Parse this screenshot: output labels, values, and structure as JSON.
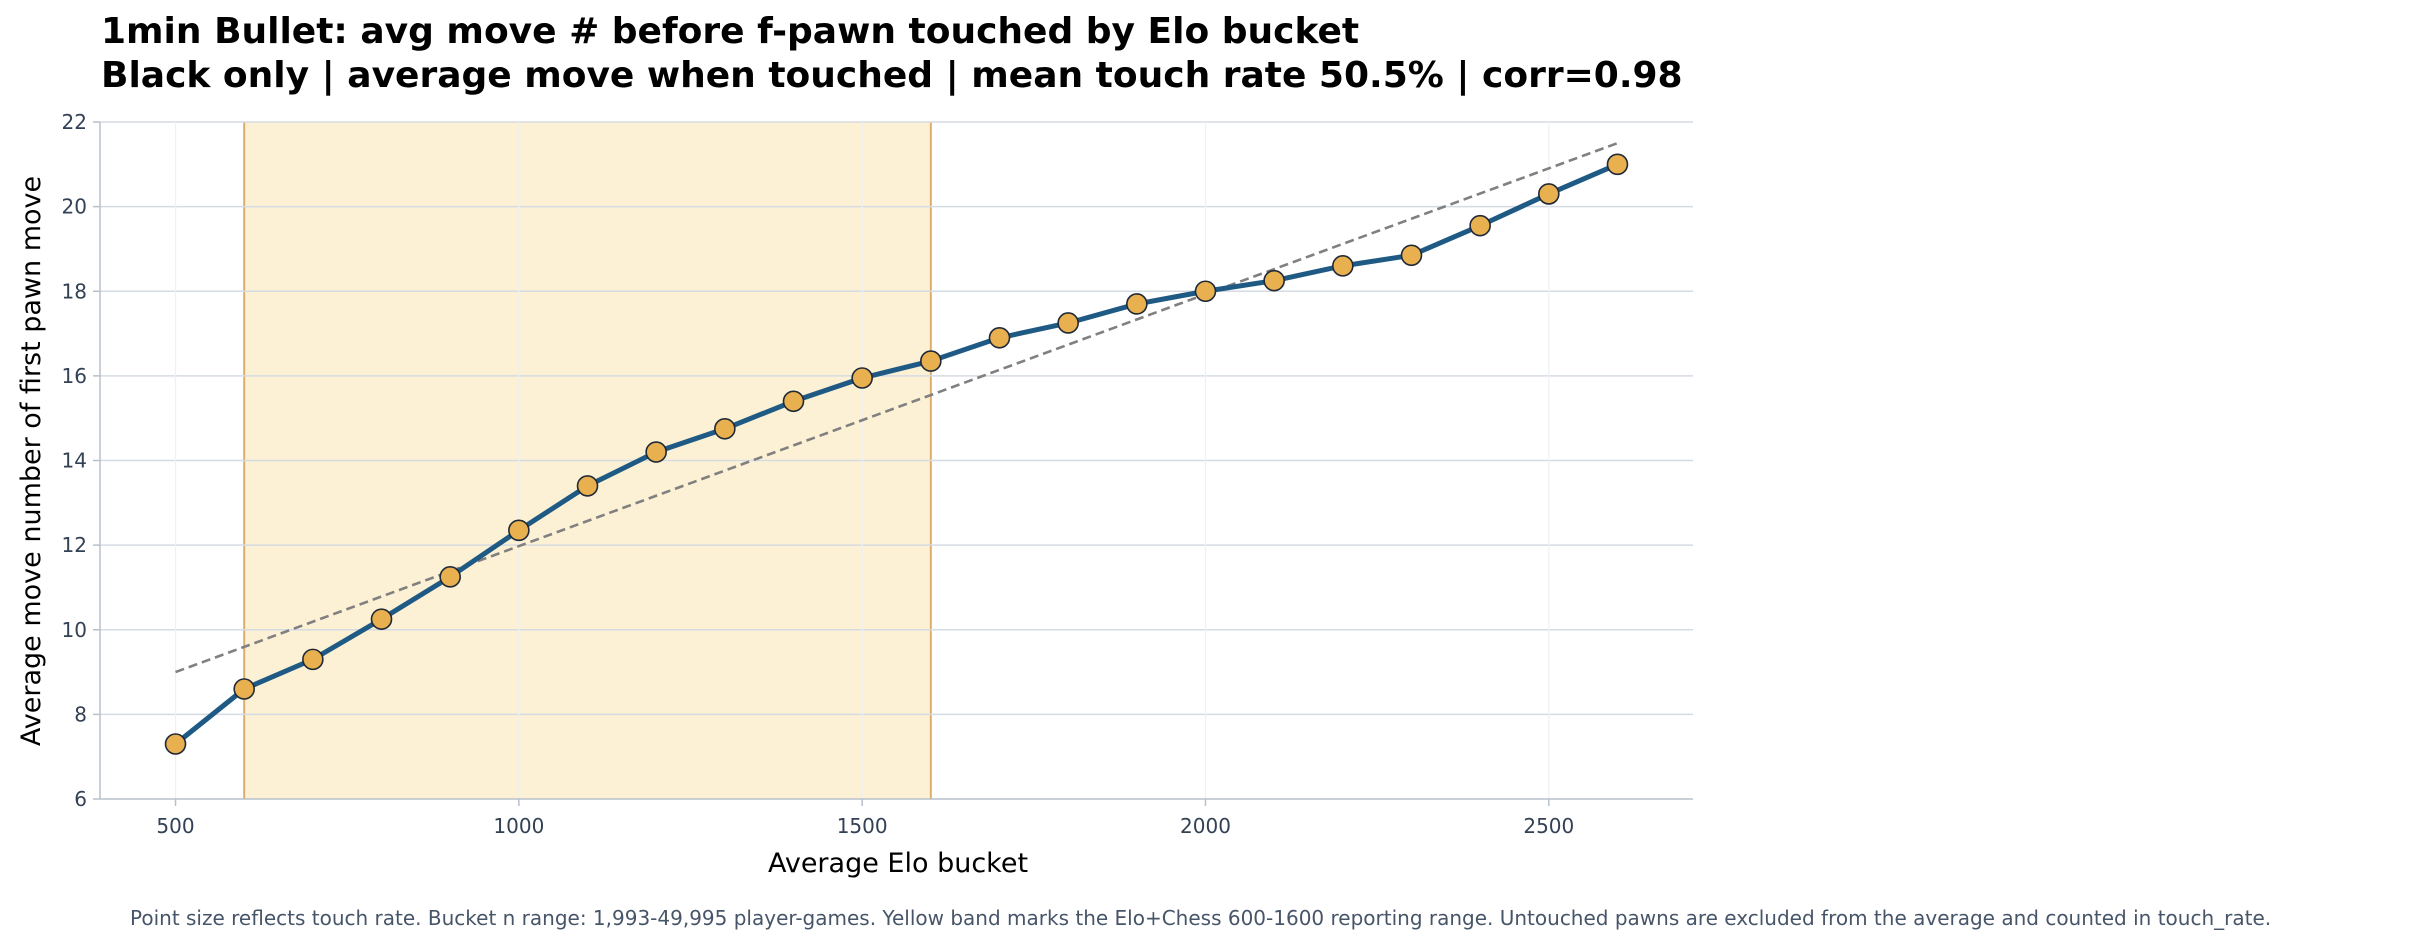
{
  "chart_data": {
    "type": "line",
    "title": "1min Bullet: avg move # before f-pawn touched by Elo bucket",
    "subtitle": "Black only | average move when touched | mean touch rate 50.5% | corr=0.98",
    "xlabel": "Average Elo bucket",
    "ylabel": "Average move number of first pawn move",
    "xlim": [
      390,
      2710
    ],
    "ylim": [
      6,
      22
    ],
    "xticks": [
      500,
      1000,
      1500,
      2000,
      2500
    ],
    "yticks": [
      6,
      8,
      10,
      12,
      14,
      16,
      18,
      20,
      22
    ],
    "grid": true,
    "series": [
      {
        "x": [
          500,
          600,
          700,
          800,
          900,
          1000,
          1100,
          1200,
          1300,
          1400,
          1500,
          1600,
          1700,
          1800,
          1900,
          2000,
          2100,
          2200,
          2300,
          2400,
          2500,
          2600
        ],
        "values": [
          7.3,
          8.6,
          9.3,
          10.25,
          11.25,
          12.35,
          13.4,
          14.2,
          14.75,
          15.4,
          15.95,
          16.35,
          16.9,
          17.25,
          17.7,
          18.0,
          18.25,
          18.6,
          18.85,
          19.55,
          20.3,
          21.0
        ]
      }
    ],
    "trendline": {
      "x": [
        500,
        2600
      ],
      "y": [
        9.0,
        21.5
      ]
    },
    "highlight_band": {
      "x": [
        600,
        1600
      ]
    },
    "colors": {
      "line": "#1f5a85",
      "marker_fill": "#e8b04f",
      "marker_edge": "#1f2937",
      "band_fill": "#fcf1d4",
      "band_edge": "#dcae6a",
      "trendline": "#808080"
    }
  },
  "caption": "Point size reflects touch rate. Bucket n range: 1,993-49,995 player-games. Yellow band marks the Elo+Chess 600-1600 reporting range. Untouched pawns are excluded from the average and counted in touch_rate."
}
